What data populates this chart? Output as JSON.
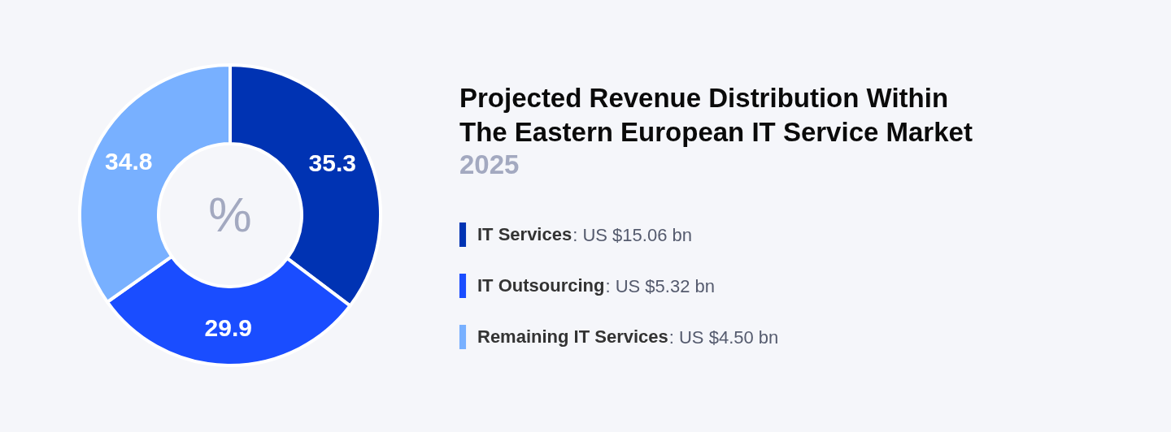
{
  "chart_data": {
    "type": "donut",
    "title": "Projected Revenue Distribution Within The Eastern European IT Service Market",
    "subtitle": "2025",
    "categories": [
      "IT Services",
      "IT Outsourcing",
      "Remaining IT Services"
    ],
    "values": [
      35.3,
      29.9,
      34.8
    ],
    "colors": [
      "#0033b3",
      "#1a4dff",
      "#78b0ff"
    ],
    "data_labels": true,
    "legend": "right",
    "annotations": [
      "%",
      ": US $15.06 bn",
      ": US $5.32 bn",
      ": US $4.50 bn"
    ]
  }
}
